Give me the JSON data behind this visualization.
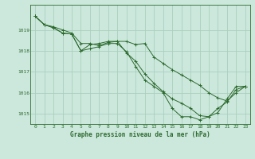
{
  "title": "Graphe pression niveau de la mer (hPa)",
  "background_color": "#cce8dd",
  "grid_color": "#aacfbf",
  "line_color": "#2d6a2d",
  "marker_color": "#2d6a2d",
  "xlim": [
    -0.5,
    23.5
  ],
  "ylim": [
    1014.5,
    1020.2
  ],
  "yticks": [
    1015,
    1016,
    1017,
    1018,
    1019
  ],
  "xticks": [
    0,
    1,
    2,
    3,
    4,
    5,
    6,
    7,
    8,
    9,
    10,
    11,
    12,
    13,
    14,
    15,
    16,
    17,
    18,
    19,
    20,
    21,
    22,
    23
  ],
  "series": [
    [
      1019.65,
      1019.25,
      1019.1,
      1018.85,
      1018.8,
      1018.0,
      1018.1,
      1018.2,
      1018.35,
      1018.35,
      1017.95,
      1017.25,
      1016.6,
      1016.3,
      1016.0,
      1015.25,
      1014.85,
      1014.85,
      1014.7,
      1014.85,
      1015.25,
      1015.55,
      1016.15,
      1016.3
    ],
    [
      1019.65,
      1019.25,
      1019.1,
      1018.85,
      1018.8,
      1018.0,
      1018.3,
      1018.35,
      1018.45,
      1018.45,
      1017.9,
      1017.5,
      1016.9,
      1016.45,
      1016.05,
      1015.7,
      1015.5,
      1015.25,
      1014.9,
      1014.85,
      1015.05,
      1015.7,
      1016.3,
      1016.3
    ],
    [
      1019.65,
      1019.25,
      1019.15,
      1019.0,
      1018.85,
      1018.35,
      1018.35,
      1018.25,
      1018.4,
      1018.45,
      1018.45,
      1018.3,
      1018.35,
      1017.7,
      1017.4,
      1017.1,
      1016.85,
      1016.6,
      1016.35,
      1016.0,
      1015.75,
      1015.6,
      1016.0,
      1016.3
    ]
  ]
}
